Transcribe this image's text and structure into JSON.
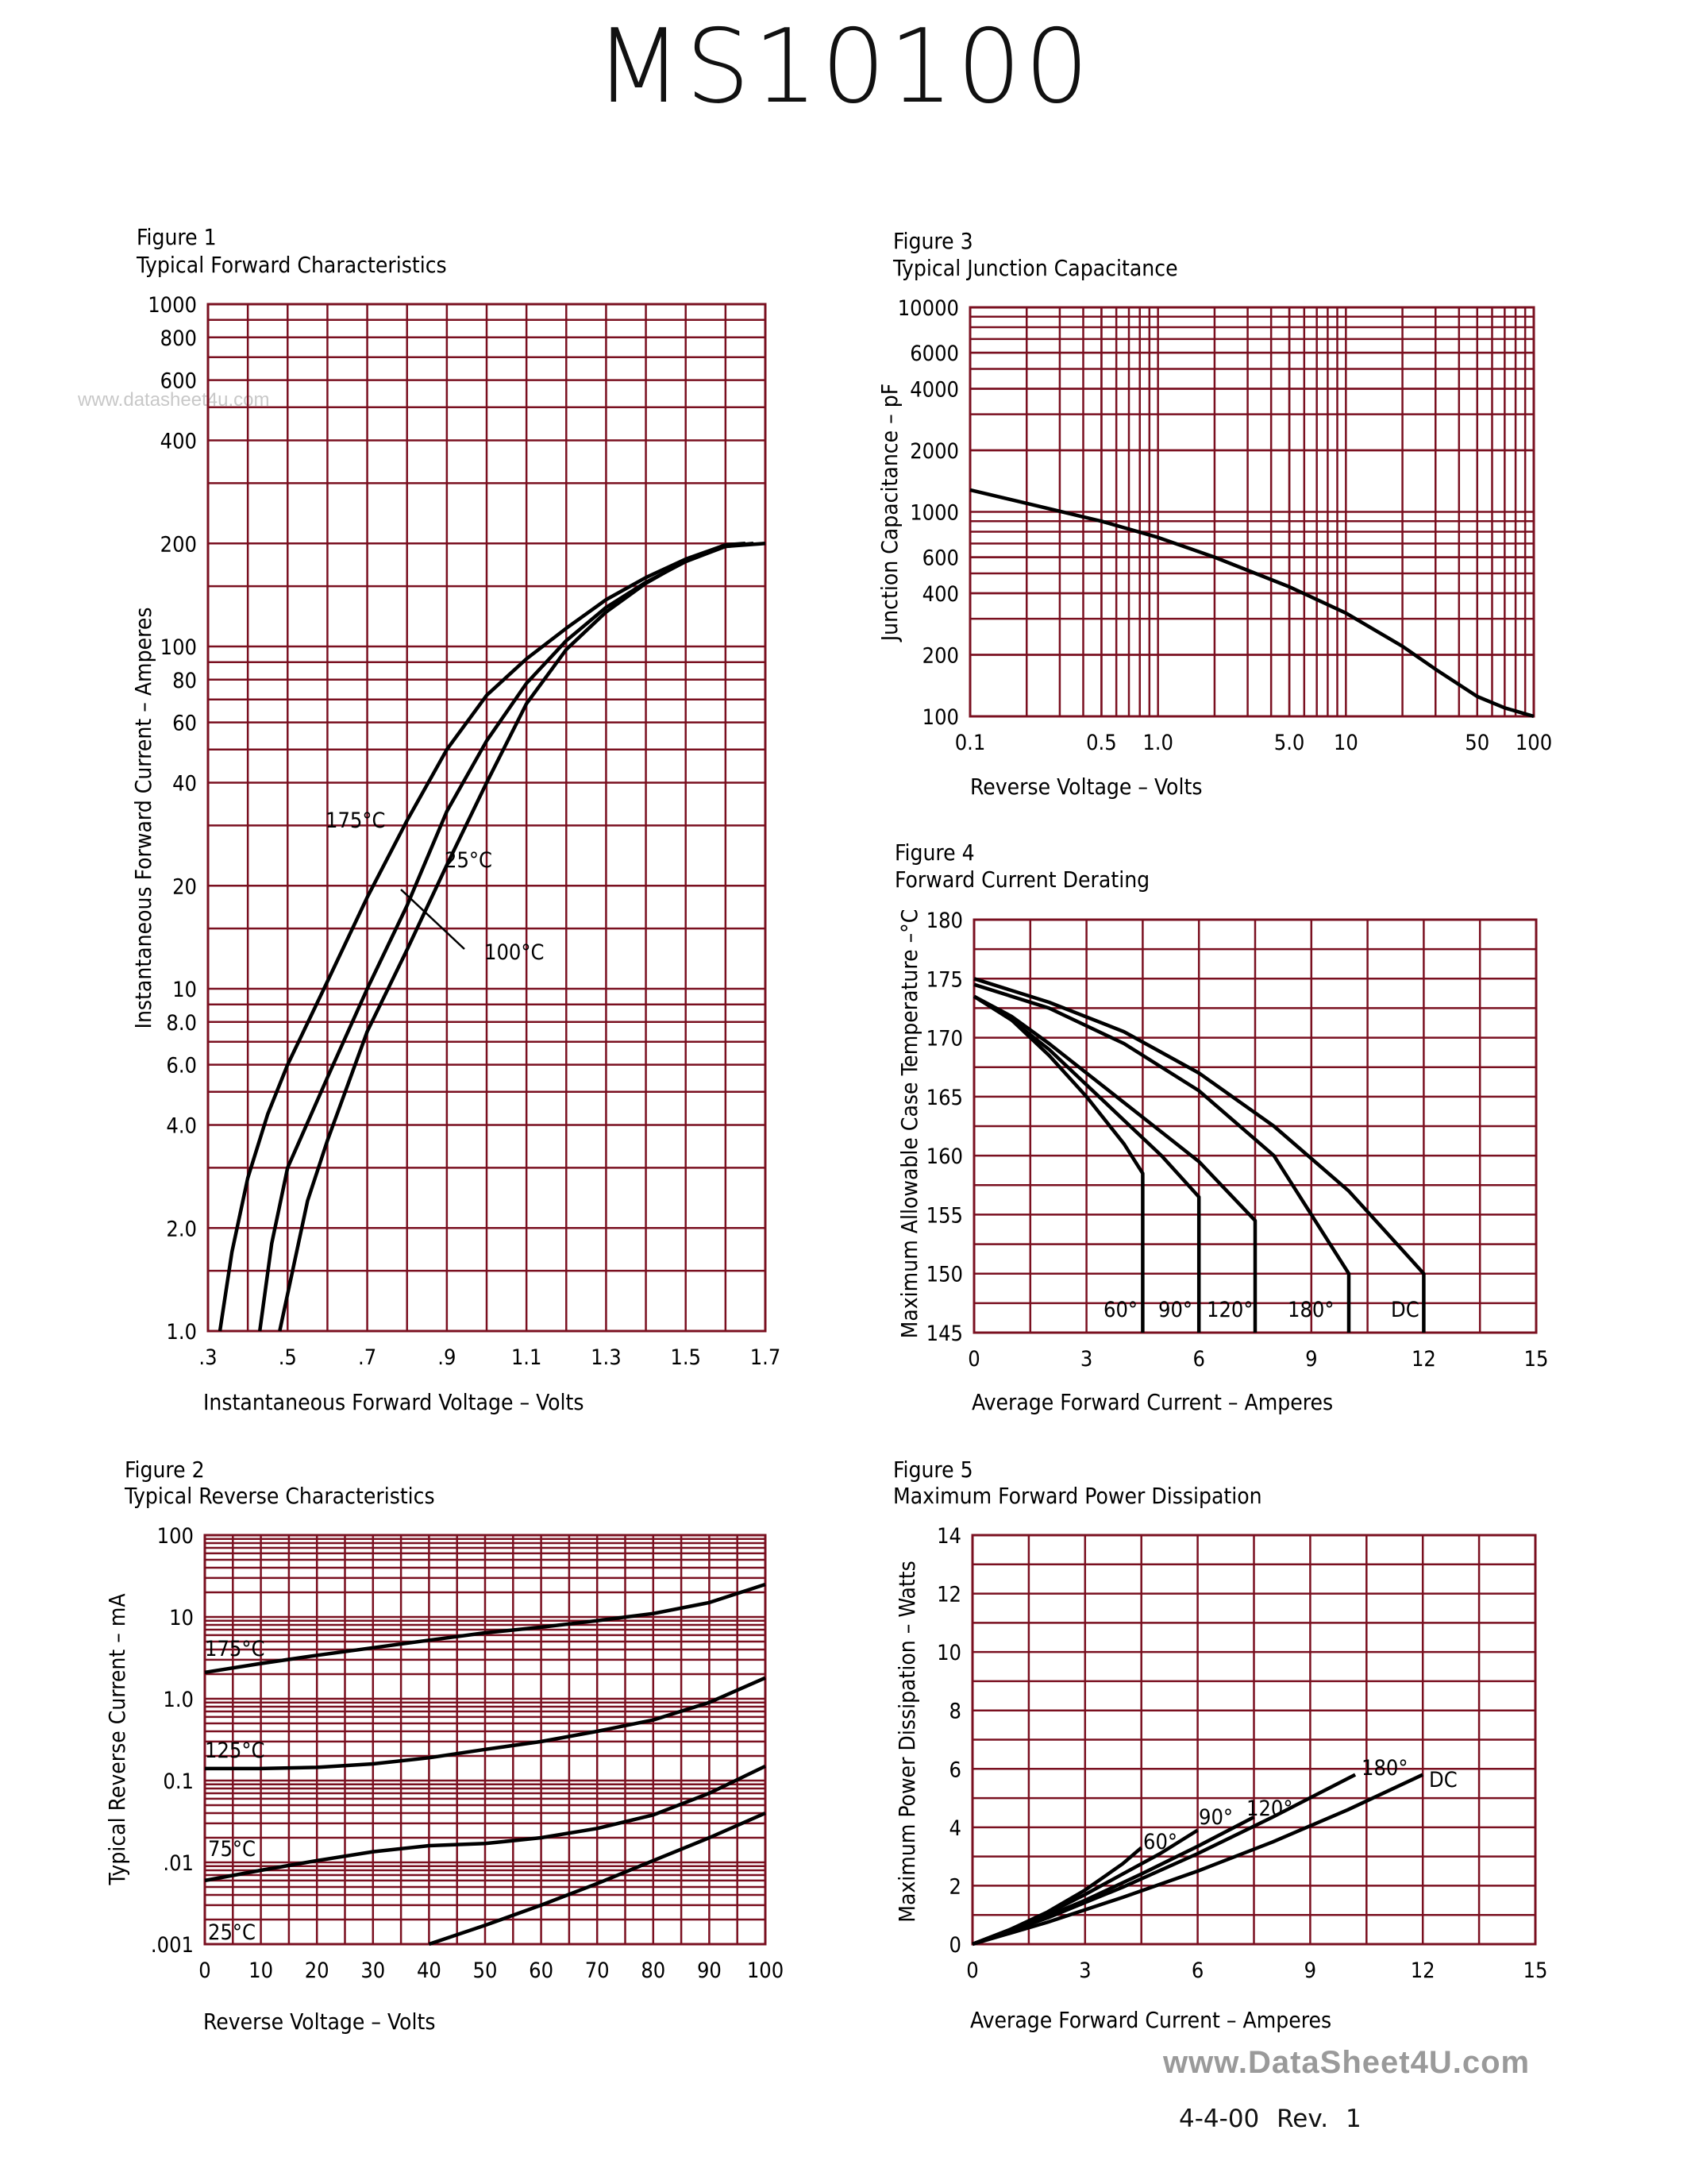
{
  "page": {
    "title": "MS10100",
    "watermark": "www.datasheet4u.com",
    "footer_site": "www.DataSheet4U.com",
    "footer_date_rev": "4-4-00   Rev. 1"
  },
  "colors": {
    "grid": "#7a1020",
    "curve": "#000000"
  },
  "chart_data": [
    {
      "id": "fig1",
      "figure_label": "Figure 1",
      "title": "Typical Forward Characteristics",
      "type": "line",
      "xlabel": "Instantaneous Forward Voltage – Volts",
      "ylabel": "Instantaneous Forward Current – Amperes",
      "xscale": "linear",
      "yscale": "log",
      "xlim": [
        0.3,
        1.7
      ],
      "ylim": [
        1,
        1000
      ],
      "xticks": [
        ".3",
        ".5",
        ".7",
        ".9",
        "1.1",
        "1.3",
        "1.5",
        "1.7"
      ],
      "yticks": [
        "1.0",
        "2.0",
        "4.0",
        "6.0",
        "8.0",
        "10",
        "20",
        "40",
        "60",
        "80",
        "100",
        "200",
        "400",
        "600",
        "800",
        "1000"
      ],
      "series": [
        {
          "name": "175°C",
          "x": [
            0.33,
            0.36,
            0.4,
            0.45,
            0.5,
            0.6,
            0.7,
            0.8,
            0.9,
            1.0,
            1.1,
            1.2,
            1.3,
            1.4,
            1.5,
            1.6,
            1.65
          ],
          "y": [
            1.0,
            1.7,
            2.8,
            4.3,
            6.0,
            10.5,
            18.5,
            31,
            50,
            72,
            92,
            113,
            137,
            159,
            180,
            198,
            200
          ]
        },
        {
          "name": "100°C",
          "x": [
            0.43,
            0.46,
            0.5,
            0.6,
            0.7,
            0.8,
            0.9,
            1.0,
            1.1,
            1.2,
            1.3,
            1.4,
            1.5,
            1.6,
            1.67
          ],
          "y": [
            1.0,
            1.8,
            3.0,
            5.5,
            10,
            17.5,
            33,
            53,
            78,
            104,
            130,
            154,
            177,
            196,
            200
          ]
        },
        {
          "name": "25°C",
          "x": [
            0.48,
            0.55,
            0.6,
            0.7,
            0.8,
            0.9,
            1.0,
            1.1,
            1.2,
            1.3,
            1.4,
            1.5,
            1.6,
            1.7
          ],
          "y": [
            1.0,
            2.4,
            3.6,
            7.5,
            13,
            23,
            40,
            68,
            98,
            126,
            153,
            178,
            196,
            200
          ]
        }
      ],
      "annotations": [
        "175°C",
        "25°C",
        "100°C"
      ]
    },
    {
      "id": "fig2",
      "figure_label": "Figure 2",
      "title": "Typical Reverse Characteristics",
      "type": "line",
      "xlabel": "Reverse Voltage – Volts",
      "ylabel": "Typical Reverse Current – mA",
      "xscale": "linear",
      "yscale": "log",
      "xlim": [
        0,
        100
      ],
      "ylim": [
        0.001,
        100
      ],
      "xticks": [
        "0",
        "10",
        "20",
        "30",
        "40",
        "50",
        "60",
        "70",
        "80",
        "90",
        "100"
      ],
      "yticks": [
        ".001",
        ".01",
        "0.1",
        "1.0",
        "10",
        "100"
      ],
      "series": [
        {
          "name": "175°C",
          "x": [
            0,
            10,
            20,
            30,
            40,
            50,
            60,
            70,
            80,
            90,
            100
          ],
          "y": [
            2.1,
            2.7,
            3.4,
            4.2,
            5.2,
            6.4,
            7.5,
            9,
            11,
            15,
            25
          ]
        },
        {
          "name": "125°C",
          "x": [
            0,
            10,
            20,
            30,
            40,
            50,
            60,
            70,
            80,
            90,
            100
          ],
          "y": [
            0.14,
            0.14,
            0.145,
            0.16,
            0.19,
            0.24,
            0.3,
            0.4,
            0.55,
            0.9,
            1.8
          ]
        },
        {
          "name": "75°C",
          "x": [
            0,
            10,
            20,
            30,
            40,
            50,
            60,
            70,
            80,
            90,
            100
          ],
          "y": [
            0.006,
            0.008,
            0.0105,
            0.0135,
            0.016,
            0.017,
            0.02,
            0.026,
            0.038,
            0.07,
            0.15
          ]
        },
        {
          "name": "25°C",
          "x": [
            40,
            50,
            60,
            70,
            80,
            90,
            100
          ],
          "y": [
            0.001,
            0.0017,
            0.003,
            0.0055,
            0.0105,
            0.02,
            0.04
          ]
        }
      ],
      "annotations": [
        "175°C",
        "125°C",
        "75°C",
        "25°C"
      ]
    },
    {
      "id": "fig3",
      "figure_label": "Figure 3",
      "title": "Typical Junction Capacitance",
      "type": "line",
      "xlabel": "Reverse Voltage – Volts",
      "ylabel": "Junction Capacitance – pF",
      "xscale": "log",
      "yscale": "log",
      "xlim": [
        0.1,
        100
      ],
      "ylim": [
        100,
        10000
      ],
      "xticks": [
        "0.1",
        "0.5",
        "1.0",
        "5.0",
        "10",
        "50",
        "100"
      ],
      "yticks": [
        "100",
        "200",
        "400",
        "600",
        "1000",
        "2000",
        "4000",
        "6000",
        "10000"
      ],
      "series": [
        {
          "name": "",
          "x": [
            0.1,
            0.2,
            0.5,
            1,
            2,
            5,
            10,
            20,
            30,
            50,
            70,
            100
          ],
          "y": [
            1280,
            1100,
            900,
            750,
            600,
            430,
            320,
            220,
            170,
            125,
            110,
            100
          ]
        }
      ]
    },
    {
      "id": "fig4",
      "figure_label": "Figure 4",
      "title": "Forward Current Derating",
      "type": "line",
      "xlabel": "Average Forward Current – Amperes",
      "ylabel": "Maximum Allowable Case Temperature –°C",
      "xscale": "linear",
      "yscale": "linear",
      "xlim": [
        0,
        15
      ],
      "ylim": [
        145,
        180
      ],
      "xticks": [
        "0",
        "3",
        "6",
        "9",
        "12",
        "15"
      ],
      "yticks": [
        "145",
        "150",
        "155",
        "160",
        "165",
        "170",
        "175",
        "180"
      ],
      "series": [
        {
          "name": "60°",
          "x": [
            0,
            1,
            2,
            3,
            4,
            4.5,
            4.5
          ],
          "y": [
            173.5,
            171.5,
            168.5,
            165,
            161,
            158.5,
            145
          ]
        },
        {
          "name": "90°",
          "x": [
            0,
            1,
            2,
            3,
            4,
            5,
            6,
            6
          ],
          "y": [
            173.5,
            171.5,
            169,
            166,
            163,
            160,
            156.5,
            145
          ]
        },
        {
          "name": "120°",
          "x": [
            0,
            1,
            2,
            3,
            4,
            5,
            6,
            7.5,
            7.5
          ],
          "y": [
            173.5,
            171.8,
            169.5,
            167,
            164.5,
            162,
            159.5,
            154.5,
            145
          ]
        },
        {
          "name": "180°",
          "x": [
            0,
            2,
            4,
            6,
            8,
            10,
            10
          ],
          "y": [
            174.5,
            172.5,
            169.5,
            165.5,
            160,
            150,
            145
          ]
        },
        {
          "name": "DC",
          "x": [
            0,
            2,
            4,
            6,
            8,
            10,
            12,
            12
          ],
          "y": [
            175,
            173,
            170.5,
            167,
            162.5,
            157,
            150,
            145
          ]
        }
      ],
      "annotations": [
        "60°",
        "90°",
        "120°",
        "180°",
        "DC"
      ]
    },
    {
      "id": "fig5",
      "figure_label": "Figure 5",
      "title": "Maximum Forward Power Dissipation",
      "type": "line",
      "xlabel": "Average Forward Current – Amperes",
      "ylabel": "Maximum Power Dissipation – Watts",
      "xscale": "linear",
      "yscale": "linear",
      "xlim": [
        0,
        15
      ],
      "ylim": [
        0,
        14
      ],
      "xticks": [
        "0",
        "3",
        "6",
        "9",
        "12",
        "15"
      ],
      "yticks": [
        "0",
        "2",
        "4",
        "6",
        "8",
        "10",
        "12",
        "14"
      ],
      "series": [
        {
          "name": "60°",
          "x": [
            0,
            1,
            2,
            3,
            4,
            4.5
          ],
          "y": [
            0,
            0.5,
            1.1,
            1.85,
            2.75,
            3.3
          ]
        },
        {
          "name": "90°",
          "x": [
            0,
            1,
            2,
            3,
            4,
            5,
            6
          ],
          "y": [
            0,
            0.5,
            1.05,
            1.7,
            2.4,
            3.1,
            3.9
          ]
        },
        {
          "name": "120°",
          "x": [
            0,
            1.5,
            3,
            4.5,
            6,
            7.5
          ],
          "y": [
            0,
            0.7,
            1.5,
            2.4,
            3.35,
            4.35
          ]
        },
        {
          "name": "180°",
          "x": [
            0,
            2,
            4,
            6,
            8,
            10.2
          ],
          "y": [
            0,
            0.9,
            1.95,
            3.1,
            4.35,
            5.8
          ]
        },
        {
          "name": "DC",
          "x": [
            0,
            2,
            4,
            6,
            8,
            10,
            12
          ],
          "y": [
            0,
            0.75,
            1.6,
            2.5,
            3.5,
            4.6,
            5.8
          ]
        }
      ],
      "annotations": [
        "60°",
        "90°",
        "120°",
        "180°",
        "DC"
      ]
    }
  ]
}
